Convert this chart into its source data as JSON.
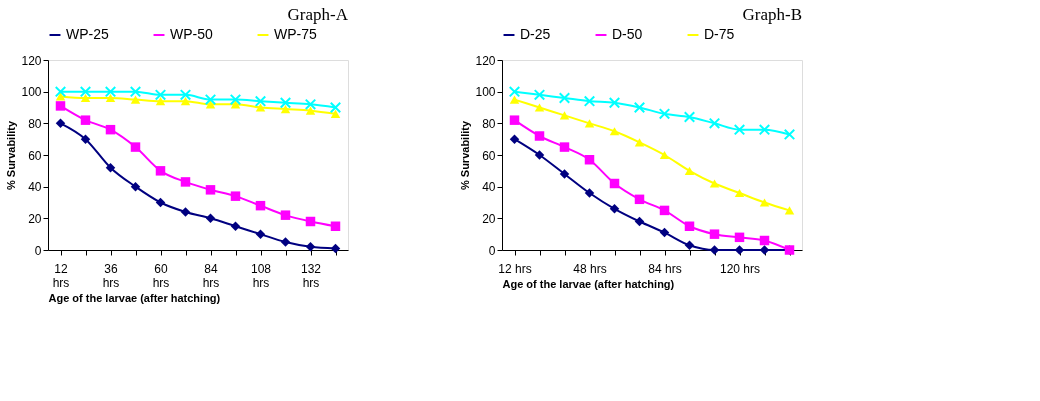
{
  "chart_data": [
    {
      "type": "line",
      "title": "Graph-A",
      "xlabel": "Age of the larvae (after hatching)",
      "ylabel": "% Survability",
      "categories": [
        "12 hrs",
        null,
        "36 hrs",
        null,
        "60 hrs",
        null,
        "84 hrs",
        null,
        "108 hrs",
        null,
        "132 hrs",
        null
      ],
      "ylim": [
        0,
        120
      ],
      "yticks": [
        0,
        20,
        40,
        60,
        80,
        100,
        120
      ],
      "grid": false,
      "legend": "top",
      "series": [
        {
          "name": "WP-25",
          "color": "#000080",
          "marker": "diamond",
          "values": [
            80,
            70,
            52,
            40,
            30,
            24,
            20,
            15,
            10,
            5,
            2,
            1
          ]
        },
        {
          "name": "WP-50",
          "color": "#ff00ff",
          "marker": "square",
          "values": [
            91,
            82,
            76,
            65,
            50,
            43,
            38,
            34,
            28,
            22,
            18,
            15
          ]
        },
        {
          "name": "WP-75",
          "color": "#ffff00",
          "marker": "triangle",
          "values": [
            97,
            96,
            96,
            95,
            94,
            94,
            92,
            92,
            90,
            89,
            88,
            86
          ]
        },
        {
          "color": "#00ffff",
          "marker": "cross",
          "values": [
            100,
            100,
            100,
            100,
            98,
            98,
            95,
            95,
            94,
            93,
            92,
            90
          ]
        }
      ]
    },
    {
      "type": "line",
      "title": "Graph-B",
      "xlabel": "Age of the larvae (after hatching)",
      "ylabel": "% Survability",
      "categories": [
        "12 hrs",
        null,
        null,
        "48 hrs",
        null,
        null,
        "84 hrs",
        null,
        null,
        "120 hrs",
        null,
        null
      ],
      "ylim": [
        0,
        120
      ],
      "yticks": [
        0,
        20,
        40,
        60,
        80,
        100,
        120
      ],
      "grid": false,
      "legend": "top",
      "series": [
        {
          "name": "D-25",
          "color": "#000080",
          "marker": "diamond",
          "values": [
            70,
            60,
            48,
            36,
            26,
            18,
            11,
            3,
            0,
            0,
            0,
            0
          ]
        },
        {
          "name": "D-50",
          "color": "#ff00ff",
          "marker": "square",
          "values": [
            82,
            72,
            65,
            57,
            42,
            32,
            25,
            15,
            10,
            8,
            6,
            0
          ]
        },
        {
          "name": "D-75",
          "color": "#ffff00",
          "marker": "triangle",
          "values": [
            95,
            90,
            85,
            80,
            75,
            68,
            60,
            50,
            42,
            36,
            30,
            25
          ]
        },
        {
          "color": "#00ffff",
          "marker": "cross",
          "values": [
            100,
            98,
            96,
            94,
            93,
            90,
            86,
            84,
            80,
            76,
            76,
            73
          ]
        }
      ]
    }
  ]
}
